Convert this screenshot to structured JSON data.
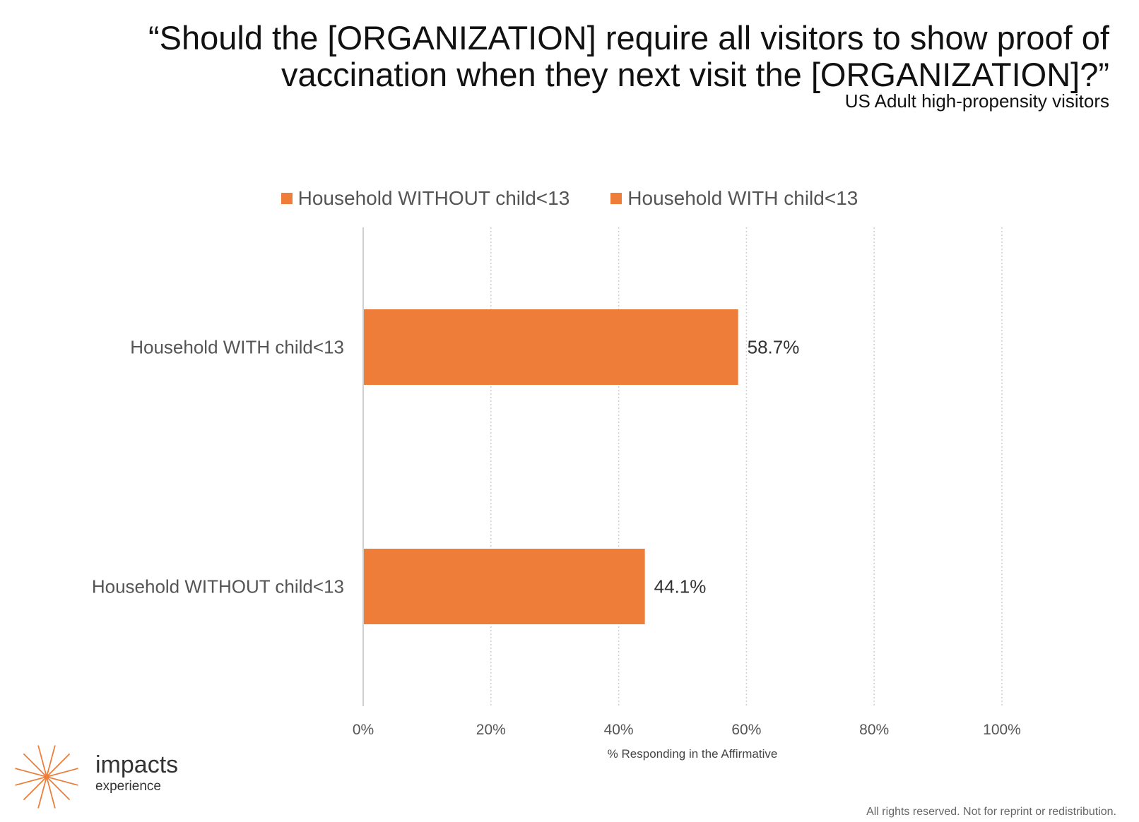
{
  "chart_data": {
    "type": "bar",
    "orientation": "horizontal",
    "title": "“Should the [ORGANIZATION] require all visitors to show proof of vaccination when they next visit the [ORGANIZATION]?”",
    "subtitle": "US Adult high-propensity visitors",
    "categories": [
      "Household WITH child<13",
      "Household WITHOUT child<13"
    ],
    "series": [
      {
        "name": "Household WITHOUT child<13",
        "color": "#ED7D39",
        "values": [
          null,
          44.1
        ]
      },
      {
        "name": "Household WITH child<13",
        "color": "#ED7D39",
        "values": [
          58.7,
          null
        ]
      }
    ],
    "data_labels": [
      "58.7%",
      "44.1%"
    ],
    "xlabel": "% Responding in the Affirmative",
    "ylabel": "",
    "xlim": [
      0,
      100
    ],
    "x_ticks": [
      "0%",
      "20%",
      "40%",
      "60%",
      "80%",
      "100%"
    ],
    "grid": true,
    "legend_position": "top"
  },
  "logo": {
    "word": "impacts",
    "sub": "experience",
    "color": "#ED7D39"
  },
  "footer": "All rights reserved. Not for reprint or redistribution."
}
